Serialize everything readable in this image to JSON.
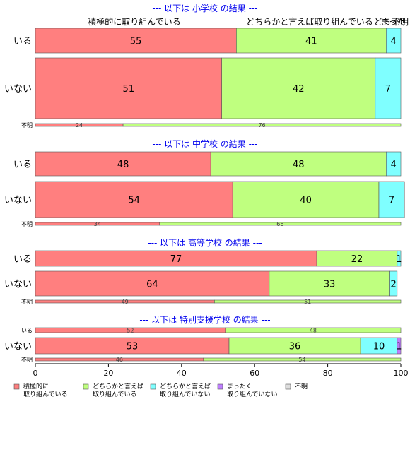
{
  "chart_data": {
    "type": "bar",
    "orientation": "horizontal",
    "stacked": true,
    "x_axis": {
      "range": [
        0,
        100
      ],
      "ticks": [
        "0",
        "20",
        "40",
        "60",
        "80",
        "100"
      ]
    },
    "col_headers": [
      "積極的に取り組んでいる",
      "どちらかと言えば取り組んでいる",
      "どち",
      "まった",
      "不明"
    ],
    "series": [
      {
        "name": "積極的に\n取り組んでいる",
        "color": "#ff7f7f"
      },
      {
        "name": "どちらかと言えば\n取り組んでいる",
        "color": "#bfff7f"
      },
      {
        "name": "どちらかと言えば\n取り組んでいない",
        "color": "#7fffff"
      },
      {
        "name": "まったく\n取り組んでいない",
        "color": "#bf7fff"
      },
      {
        "name": "不明",
        "color": "#dddddd"
      }
    ],
    "panels": [
      {
        "title": "--- 以下は 小学校 の結果 ---",
        "rows": [
          {
            "label": "いる",
            "values": [
              55,
              41,
              4,
              0,
              0
            ],
            "labels": [
              "55",
              "41",
              "4",
              "",
              ""
            ]
          },
          {
            "label": "いない",
            "values": [
              51,
              42,
              7,
              0,
              0
            ],
            "labels": [
              "51",
              "42",
              "7",
              "",
              ""
            ]
          },
          {
            "label": "不明",
            "values": [
              24,
              76,
              0,
              0,
              0
            ],
            "labels": [
              "24",
              "76",
              "",
              "",
              ""
            ]
          }
        ]
      },
      {
        "title": "--- 以下は 中学校 の結果 ---",
        "rows": [
          {
            "label": "いる",
            "values": [
              48,
              48,
              4,
              0,
              0
            ],
            "labels": [
              "48",
              "48",
              "4",
              "",
              ""
            ]
          },
          {
            "label": "いない",
            "values": [
              54,
              40,
              7,
              0,
              0
            ],
            "labels": [
              "54",
              "40",
              "7",
              "",
              ""
            ]
          },
          {
            "label": "不明",
            "values": [
              34,
              66,
              0,
              0,
              0
            ],
            "labels": [
              "34",
              "66",
              "",
              "",
              ""
            ]
          }
        ]
      },
      {
        "title": "--- 以下は 高等学校 の結果 ---",
        "rows": [
          {
            "label": "いる",
            "values": [
              77,
              22,
              1,
              0,
              0
            ],
            "labels": [
              "77",
              "22",
              "1",
              "",
              ""
            ]
          },
          {
            "label": "いない",
            "values": [
              64,
              33,
              2,
              0,
              0
            ],
            "labels": [
              "64",
              "33",
              "2",
              "",
              ""
            ]
          },
          {
            "label": "不明",
            "values": [
              49,
              51,
              0,
              0,
              0
            ],
            "labels": [
              "49",
              "51",
              "",
              "",
              ""
            ]
          }
        ]
      },
      {
        "title": "--- 以下は 特別支援学校 の結果 ---",
        "rows": [
          {
            "label": "いる",
            "values": [
              52,
              48,
              0,
              0,
              0
            ],
            "labels": [
              "52",
              "48",
              "",
              "",
              ""
            ]
          },
          {
            "label": "いない",
            "values": [
              53,
              36,
              10,
              1,
              0
            ],
            "labels": [
              "53",
              "36",
              "10",
              "1",
              ""
            ]
          },
          {
            "label": "不明",
            "values": [
              46,
              54,
              0,
              0,
              0
            ],
            "labels": [
              "46",
              "54",
              "",
              "",
              ""
            ]
          }
        ]
      }
    ]
  }
}
